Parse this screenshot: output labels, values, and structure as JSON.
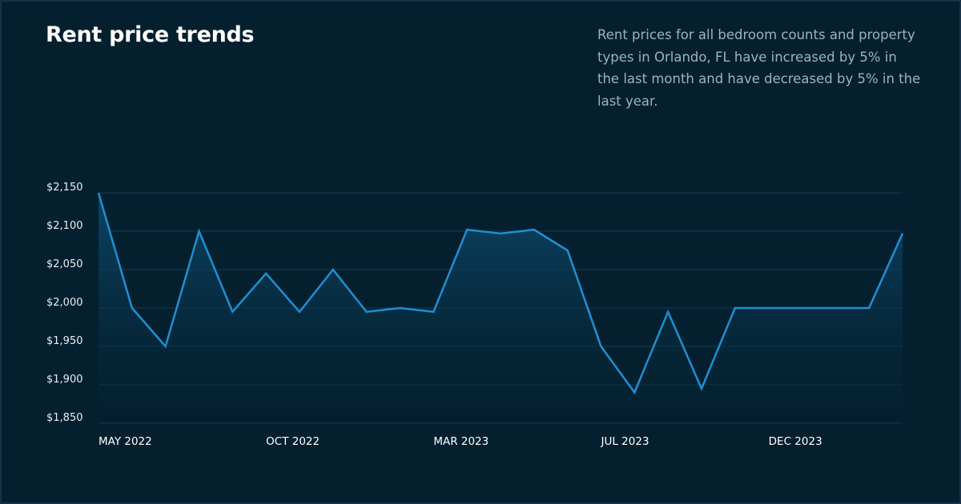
{
  "header": {
    "title": "Rent price trends",
    "description": "Rent prices for all bedroom counts and property types in Orlando, FL have increased by 5% in the last month and have decreased by 5% in the last year."
  },
  "colors": {
    "background": "#04202f",
    "line": "#1f8fd3",
    "grid": "#123b55",
    "area_top": "#0d4a6e",
    "area_bottom": "#04202f"
  },
  "chart_data": {
    "type": "area",
    "title": "Rent price trends",
    "xlabel": "",
    "ylabel": "",
    "x_tick_labels": [
      "MAY 2022",
      "OCT 2022",
      "MAR 2023",
      "JUL 2023",
      "DEC 2023"
    ],
    "x_tick_indices": [
      0,
      5,
      10,
      15,
      20
    ],
    "y_ticks": [
      2150,
      2100,
      2050,
      2000,
      1950,
      1900,
      1850
    ],
    "y_tick_labels": [
      "$2,150",
      "$2,100",
      "$2,050",
      "$2,000",
      "$1,950",
      "$1,900",
      "$1,850"
    ],
    "ylim": [
      1850,
      2150
    ],
    "grid": true,
    "series": [
      {
        "values": [
          2150,
          2000,
          1950,
          2100,
          1995,
          2045,
          1995,
          2050,
          1995,
          2000,
          1995,
          2102,
          2097,
          2102,
          2075,
          1950,
          1890,
          1995,
          1895,
          2000,
          2000,
          2000,
          2000,
          2000,
          2097
        ]
      }
    ]
  }
}
